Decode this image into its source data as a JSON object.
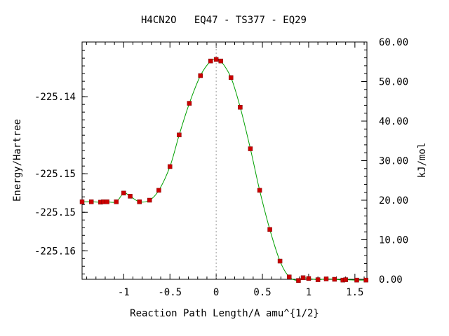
{
  "chart_data": {
    "type": "line",
    "title": "H4CN2O   EQ47 - TS377 - EQ29",
    "xlabel": "Reaction Path Length/A amu^{1/2}",
    "ylabel_left": "Energy/Hartree",
    "ylabel_right": "kJ/mol",
    "xlim": [
      -1.45,
      1.63
    ],
    "ylim_left": [
      -225.1637,
      -225.1329
    ],
    "ylim_right": [
      0,
      60
    ],
    "x_ticks": [
      -1,
      -0.5,
      0,
      0.5,
      1,
      1.5
    ],
    "x_tick_labels": [
      "-1",
      "-0.5",
      "0",
      "0.5",
      "1",
      "1.5"
    ],
    "y_left_ticks": [
      -225.14,
      -225.15,
      -225.155,
      -225.16
    ],
    "y_left_tick_labels": [
      "-225.14",
      "-225.15",
      "-225.15",
      "-225.16"
    ],
    "y_right_ticks": [
      0,
      10,
      20,
      30,
      40,
      50,
      60
    ],
    "y_right_tick_labels": [
      "0.00",
      "10.00",
      "20.00",
      "30.00",
      "40.00",
      "50.00",
      "60.00"
    ],
    "ts_marker_x": 0,
    "grid": false,
    "colors": {
      "line": "#00a000",
      "points": "#cc0000",
      "ts_line": "#999999",
      "axes": "#000000"
    },
    "series": [
      {
        "x": [
          -1.45,
          -1.35,
          -1.25,
          -1.22,
          -1.18,
          -1.08,
          -1.0,
          -0.93,
          -0.83,
          -0.72,
          -0.62,
          -0.5,
          -0.4,
          -0.29,
          -0.17,
          -0.06,
          0.0,
          0.05,
          0.16,
          0.26,
          0.37,
          0.47,
          0.58,
          0.69,
          0.79,
          0.89,
          0.94,
          1.0,
          1.1,
          1.19,
          1.28,
          1.37,
          1.4,
          1.52,
          1.62
        ],
        "y": [
          19.6,
          19.6,
          19.5,
          19.6,
          19.6,
          19.6,
          21.8,
          21.0,
          19.6,
          20.0,
          22.5,
          28.5,
          36.5,
          44.5,
          51.5,
          55.2,
          55.6,
          55.2,
          51.0,
          43.5,
          33.0,
          22.5,
          12.6,
          4.6,
          0.6,
          -0.3,
          0.4,
          0.2,
          -0.1,
          0.1,
          0.0,
          -0.2,
          -0.1,
          -0.2,
          -0.2
        ]
      }
    ]
  }
}
